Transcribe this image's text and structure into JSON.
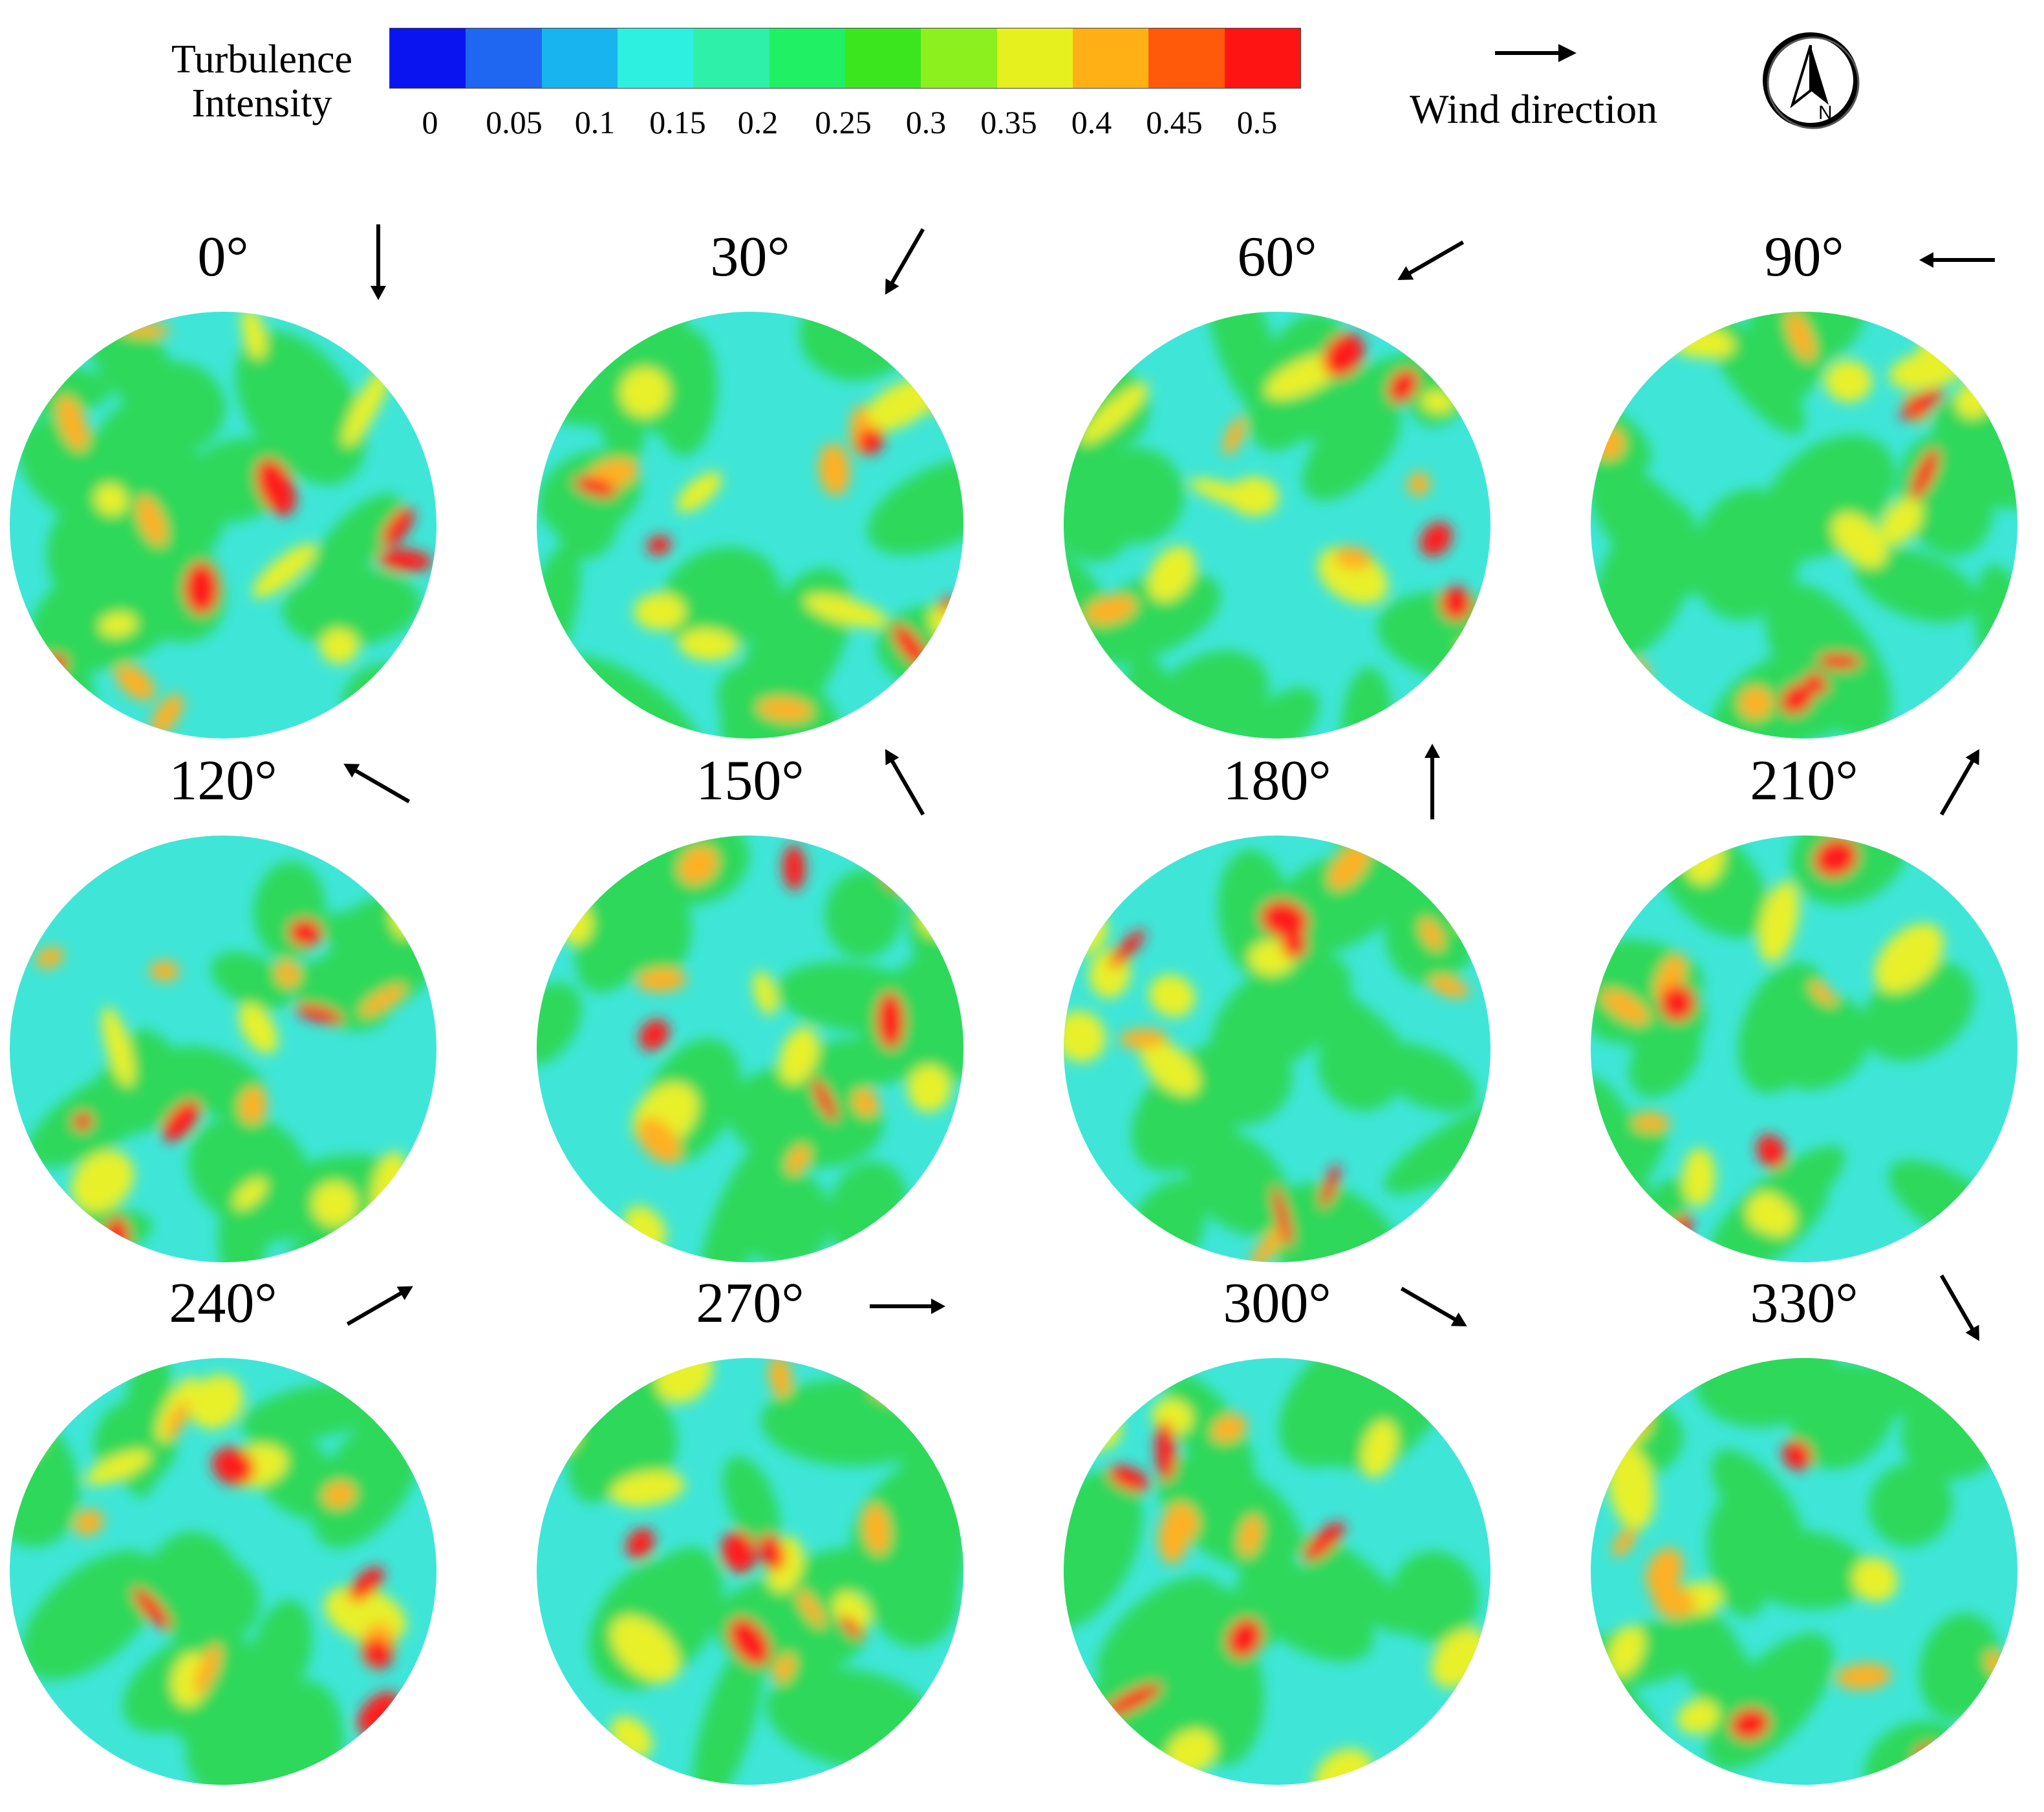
{
  "legend": {
    "title_line1": "Turbulence",
    "title_line2": "Intensity",
    "colors": [
      "#0a14f0",
      "#1f66f0",
      "#18b4f0",
      "#2ef0e0",
      "#2ff0a8",
      "#1ff064",
      "#3ce61e",
      "#8cf01e",
      "#e6f01e",
      "#ffb014",
      "#ff5a0a",
      "#ff1414"
    ],
    "ticks": [
      "0",
      "0.05",
      "0.1",
      "0.15",
      "0.2",
      "0.25",
      "0.3",
      "0.35",
      "0.4",
      "0.45",
      "0.5"
    ]
  },
  "wind": {
    "label": "Wind direction",
    "arrow_icon": "right-arrow-icon"
  },
  "north": {
    "label": "N",
    "icon": "north-arrow-icon"
  },
  "panels": [
    {
      "angle": "0°",
      "dir": 0
    },
    {
      "angle": "30°",
      "dir": 30
    },
    {
      "angle": "60°",
      "dir": 60
    },
    {
      "angle": "90°",
      "dir": 90
    },
    {
      "angle": "120°",
      "dir": 120
    },
    {
      "angle": "150°",
      "dir": 150
    },
    {
      "angle": "180°",
      "dir": 180
    },
    {
      "angle": "210°",
      "dir": 210
    },
    {
      "angle": "240°",
      "dir": 240
    },
    {
      "angle": "270°",
      "dir": 270
    },
    {
      "angle": "300°",
      "dir": 300
    },
    {
      "angle": "330°",
      "dir": 330
    }
  ],
  "colors": {
    "base_cyan": "#3fe6d8",
    "green": "#2fd85a",
    "yellow": "#e8f02a",
    "orange": "#ffb020",
    "red": "#ff1a1a"
  }
}
